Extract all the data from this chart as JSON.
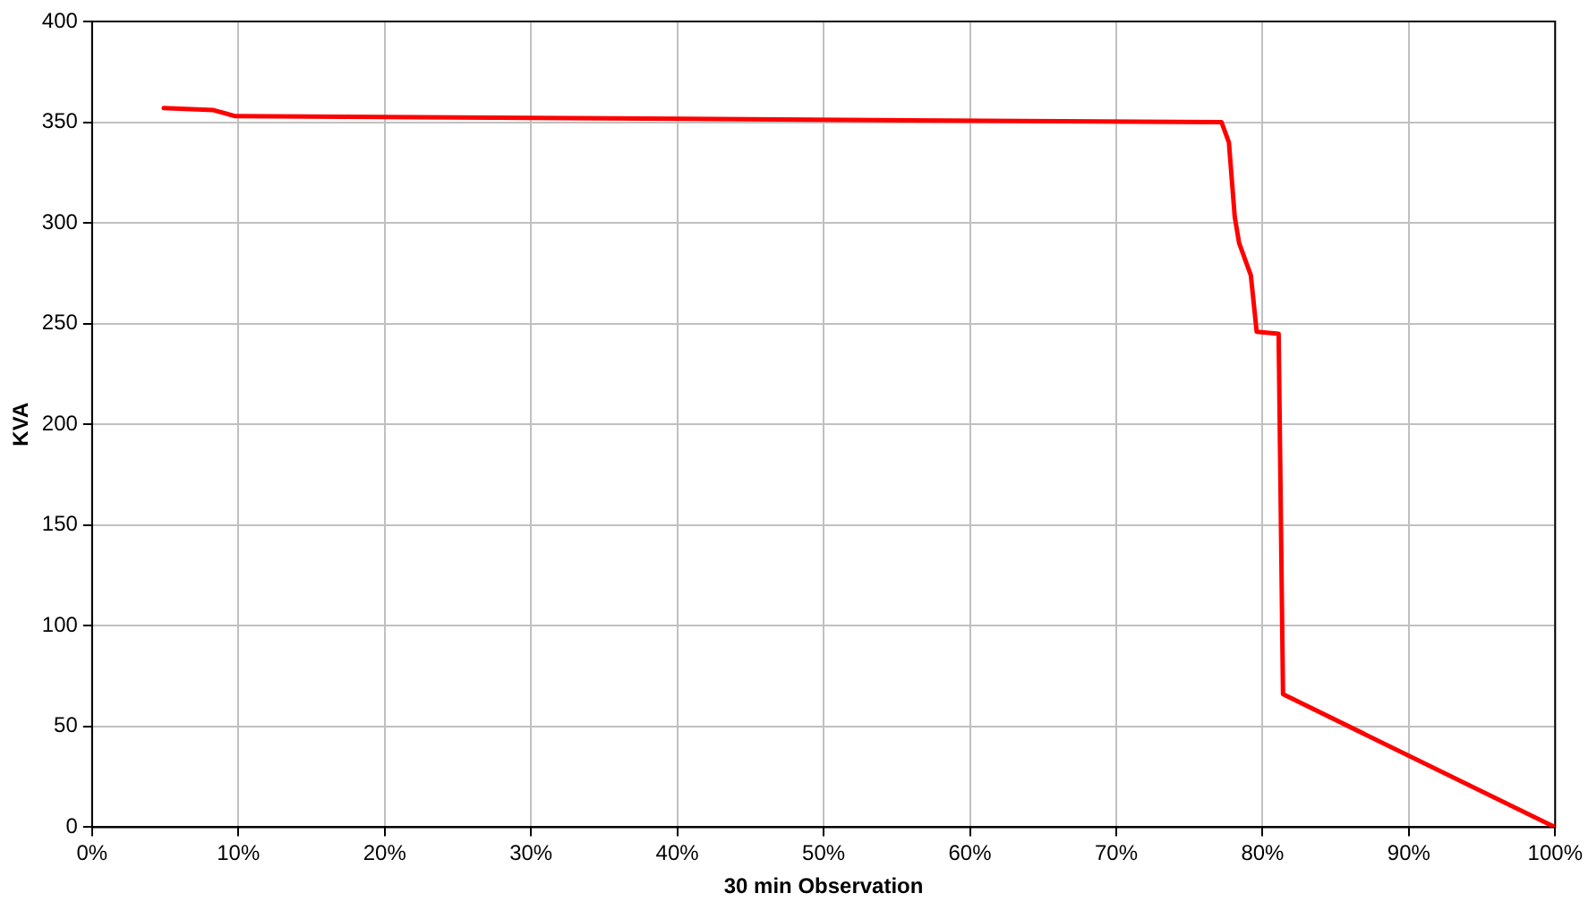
{
  "chart_data": {
    "type": "line",
    "xlabel": "30 min Observation",
    "ylabel": "KVA",
    "x": [
      4.9,
      8.3,
      9.8,
      77.2,
      77.7,
      78.1,
      78.4,
      79.2,
      79.6,
      81.1,
      81.4,
      100
    ],
    "series": [
      {
        "color": "#ff0000",
        "values": [
          357,
          356,
          353,
          350,
          340,
          303,
          290,
          274,
          246,
          245,
          66,
          0
        ]
      }
    ],
    "xlim": [
      0,
      100
    ],
    "xticks": [
      {
        "value": 0,
        "label": "0%"
      },
      {
        "value": 10,
        "label": "10%"
      },
      {
        "value": 20,
        "label": "20%"
      },
      {
        "value": 30,
        "label": "30%"
      },
      {
        "value": 40,
        "label": "40%"
      },
      {
        "value": 50,
        "label": "50%"
      },
      {
        "value": 60,
        "label": "60%"
      },
      {
        "value": 70,
        "label": "70%"
      },
      {
        "value": 80,
        "label": "80%"
      },
      {
        "value": 90,
        "label": "90%"
      },
      {
        "value": 100,
        "label": "100%"
      }
    ],
    "ylim": [
      0,
      400
    ],
    "yticks": [
      0,
      50,
      100,
      150,
      200,
      250,
      300,
      350,
      400
    ],
    "grid": true,
    "legend": false,
    "marker": "none",
    "line_style": "solid"
  }
}
